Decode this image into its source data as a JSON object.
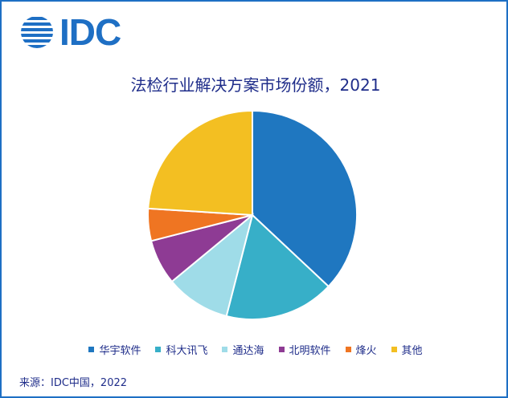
{
  "header": {
    "logo_text": "IDC"
  },
  "chart_data": {
    "type": "pie",
    "title": "法检行业解决方案市场份额，2021",
    "categories": [
      "华宇软件",
      "科大讯飞",
      "通达海",
      "北明软件",
      "烽火",
      "其他"
    ],
    "values": [
      37,
      17,
      10,
      7,
      5,
      24
    ],
    "colors": [
      "#1f77c0",
      "#37afc8",
      "#9fdce8",
      "#8e3b94",
      "#ef7522",
      "#f3bf22"
    ],
    "legend_position": "bottom"
  },
  "footer": {
    "source": "来源：IDC中国，2022"
  }
}
